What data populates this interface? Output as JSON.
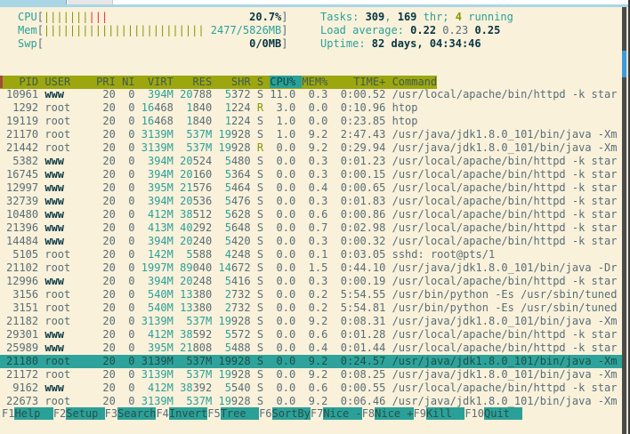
{
  "colors": {
    "background": "#faf1db",
    "foreground": "#586e75",
    "bold_text": "#073642",
    "teal": "#2aa198",
    "olive_green": "#859900",
    "red": "#dc322f",
    "header_bg": "#9ca70f",
    "selected_bg": "#2ea39b",
    "tab_blue": "#a9d6e5",
    "scroll_thumb_blue": "#3e9adb"
  },
  "meters": {
    "cpu": {
      "label": "CPU",
      "value": "20.7%",
      "bars_low": 7,
      "bars_high": 3
    },
    "mem": {
      "label": "Mem",
      "value": "2477/5826MB",
      "bars": 25
    },
    "swp": {
      "label": "Swp",
      "value": "0/0MB",
      "bars": 0
    }
  },
  "info": {
    "tasks": {
      "prefix": "Tasks: ",
      "count": "309",
      "sep": ", ",
      "threads": "169",
      "thr_label": " thr; ",
      "running": "4",
      "running_label": " running"
    },
    "load": {
      "prefix": "Load average: ",
      "one": "0.22",
      "five": "0.23",
      "fifteen": "0.25"
    },
    "uptime": {
      "prefix": "Uptime: ",
      "value": "82 days, 04:34:46"
    }
  },
  "table": {
    "columns": [
      "PID",
      "USER",
      "PRI",
      "NI",
      "VIRT",
      "RES",
      "SHR",
      "S",
      "CPU%",
      "MEM%",
      "TIME+",
      "Command"
    ],
    "sort_column": "CPU%",
    "selected_pid": "21180",
    "rows": [
      [
        "10961",
        "www",
        "20",
        "0",
        "394M",
        "20788",
        "5372",
        "S",
        "11.0",
        "0.3",
        "0:00.52",
        "/usr/local/apache/bin/httpd -k star"
      ],
      [
        "1292",
        "root",
        "20",
        "0",
        "16468",
        "1840",
        "1224",
        "R",
        "3.0",
        "0.0",
        "0:10.96",
        "htop"
      ],
      [
        "19119",
        "root",
        "20",
        "0",
        "16468",
        "1840",
        "1224",
        "S",
        "1.0",
        "0.0",
        "0:23.85",
        "htop"
      ],
      [
        "21170",
        "root",
        "20",
        "0",
        "3139M",
        "537M",
        "19928",
        "S",
        "1.0",
        "9.2",
        "2:47.43",
        "/usr/java/jdk1.8.0_101/bin/java -Xm"
      ],
      [
        "21442",
        "root",
        "20",
        "0",
        "3139M",
        "537M",
        "19928",
        "R",
        "0.0",
        "9.2",
        "0:29.94",
        "/usr/java/jdk1.8.0_101/bin/java -Xm"
      ],
      [
        "5382",
        "www",
        "20",
        "0",
        "394M",
        "20524",
        "5480",
        "S",
        "0.0",
        "0.3",
        "0:01.23",
        "/usr/local/apache/bin/httpd -k star"
      ],
      [
        "16745",
        "www",
        "20",
        "0",
        "394M",
        "20160",
        "5364",
        "S",
        "0.0",
        "0.3",
        "0:00.15",
        "/usr/local/apache/bin/httpd -k star"
      ],
      [
        "12997",
        "www",
        "20",
        "0",
        "395M",
        "21576",
        "5464",
        "S",
        "0.0",
        "0.4",
        "0:00.65",
        "/usr/local/apache/bin/httpd -k star"
      ],
      [
        "32739",
        "www",
        "20",
        "0",
        "394M",
        "20536",
        "5476",
        "S",
        "0.0",
        "0.3",
        "0:01.83",
        "/usr/local/apache/bin/httpd -k star"
      ],
      [
        "10480",
        "www",
        "20",
        "0",
        "412M",
        "38512",
        "5628",
        "S",
        "0.0",
        "0.6",
        "0:00.86",
        "/usr/local/apache/bin/httpd -k star"
      ],
      [
        "21396",
        "www",
        "20",
        "0",
        "413M",
        "40292",
        "5648",
        "S",
        "0.0",
        "0.7",
        "0:02.98",
        "/usr/local/apache/bin/httpd -k star"
      ],
      [
        "14484",
        "www",
        "20",
        "0",
        "394M",
        "20240",
        "5420",
        "S",
        "0.0",
        "0.3",
        "0:00.32",
        "/usr/local/apache/bin/httpd -k star"
      ],
      [
        "5105",
        "root",
        "20",
        "0",
        "142M",
        "5588",
        "4248",
        "S",
        "0.0",
        "0.1",
        "0:03.05",
        "sshd: root@pts/1"
      ],
      [
        "21102",
        "root",
        "20",
        "0",
        "1997M",
        "89040",
        "14672",
        "S",
        "0.0",
        "1.5",
        "0:44.10",
        "/usr/java/jdk1.8.0_101/bin/java -Dr"
      ],
      [
        "12996",
        "www",
        "20",
        "0",
        "394M",
        "20248",
        "5416",
        "S",
        "0.0",
        "0.3",
        "0:00.19",
        "/usr/local/apache/bin/httpd -k star"
      ],
      [
        "3156",
        "root",
        "20",
        "0",
        "540M",
        "13380",
        "2732",
        "S",
        "0.0",
        "0.2",
        "5:54.55",
        "/usr/bin/python -Es /usr/sbin/tuned"
      ],
      [
        "3151",
        "root",
        "20",
        "0",
        "540M",
        "13380",
        "2732",
        "S",
        "0.0",
        "0.2",
        "5:54.81",
        "/usr/bin/python -Es /usr/sbin/tuned"
      ],
      [
        "21182",
        "root",
        "20",
        "0",
        "3139M",
        "537M",
        "19928",
        "S",
        "0.0",
        "9.2",
        "0:08.31",
        "/usr/java/jdk1.8.0_101/bin/java -Xm"
      ],
      [
        "29301",
        "www",
        "20",
        "0",
        "412M",
        "38592",
        "5572",
        "S",
        "0.0",
        "0.6",
        "0:01.28",
        "/usr/local/apache/bin/httpd -k star"
      ],
      [
        "25989",
        "www",
        "20",
        "0",
        "395M",
        "21808",
        "5488",
        "S",
        "0.0",
        "0.4",
        "0:01.44",
        "/usr/local/apache/bin/httpd -k star"
      ],
      [
        "21180",
        "root",
        "20",
        "0",
        "3139M",
        "537M",
        "19928",
        "S",
        "0.0",
        "9.2",
        "0:24.57",
        "/usr/java/jdk1.8.0_101/bin/java -Xm"
      ],
      [
        "21172",
        "root",
        "20",
        "0",
        "3139M",
        "537M",
        "19928",
        "S",
        "0.0",
        "9.2",
        "0:08.25",
        "/usr/java/jdk1.8.0_101/bin/java -Xm"
      ],
      [
        "9162",
        "www",
        "20",
        "0",
        "412M",
        "38392",
        "5540",
        "S",
        "0.0",
        "0.6",
        "0:00.55",
        "/usr/local/apache/bin/httpd -k star"
      ],
      [
        "22673",
        "root",
        "20",
        "0",
        "3139M",
        "537M",
        "19928",
        "S",
        "0.0",
        "9.2",
        "0:06.46",
        "/usr/java/jdk1.8.0_101/bin/java -Xm"
      ]
    ]
  },
  "fnbar": [
    {
      "key": "F1",
      "label": "Help"
    },
    {
      "key": "F2",
      "label": "Setup"
    },
    {
      "key": "F3",
      "label": "Search"
    },
    {
      "key": "F4",
      "label": "Invert"
    },
    {
      "key": "F5",
      "label": "Tree"
    },
    {
      "key": "F6",
      "label": "SortBy"
    },
    {
      "key": "F7",
      "label": "Nice -"
    },
    {
      "key": "F8",
      "label": "Nice +"
    },
    {
      "key": "F9",
      "label": "Kill"
    },
    {
      "key": "F10",
      "label": "Quit"
    }
  ]
}
